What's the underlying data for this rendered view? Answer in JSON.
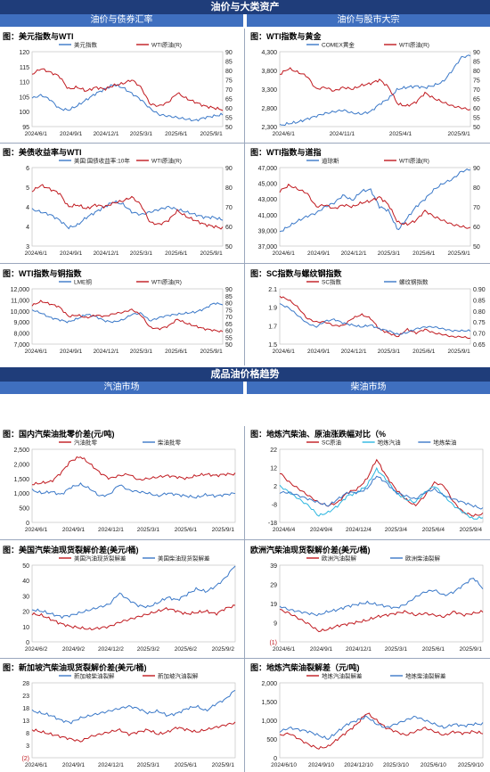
{
  "sections": {
    "top": "油价与大类资产",
    "top_left": "油价与债券汇率",
    "top_right": "油价与股市大宗",
    "bottom": "成品油价格趋势",
    "bottom_left": "汽油市场",
    "bottom_right": "柴油市场"
  },
  "colors": {
    "blue": "#3a78c8",
    "red": "#c0191f",
    "cyan": "#2bb6e0",
    "header": "#1f3d7a",
    "subheader": "#3f6fbf"
  },
  "chart_data": [
    {
      "id": "c1",
      "type": "line",
      "title": "图：美元指数与WTI",
      "x_labels": [
        "2024/6/1",
        "2024/9/1",
        "2024/12/1",
        "2025/3/1",
        "2025/6/1",
        "2025/9/1"
      ],
      "y_left": {
        "ticks": [
          "120",
          "115",
          "110",
          "105",
          "100",
          "95"
        ],
        "range": [
          95,
          120
        ]
      },
      "y_right": {
        "ticks": [
          "90",
          "85",
          "80",
          "75",
          "70",
          "65",
          "60",
          "55",
          "50"
        ],
        "range": [
          50,
          90
        ]
      },
      "series": [
        {
          "name": "美元指数",
          "color": "blue",
          "axis": "left",
          "values": [
            104.5,
            105.5,
            104,
            101,
            100.5,
            102,
            104,
            106,
            107.5,
            109,
            108,
            106,
            104,
            101,
            99,
            98.5,
            98,
            97.5,
            97,
            98,
            98.5,
            99
          ]
        },
        {
          "name": "WTI原油(R)",
          "color": "red",
          "axis": "right",
          "values": [
            78,
            81,
            79,
            77,
            70,
            71,
            69,
            71,
            70,
            72,
            73,
            75,
            71,
            62,
            61,
            63,
            68,
            65,
            63,
            61,
            60,
            59
          ]
        }
      ]
    },
    {
      "id": "c2",
      "type": "line",
      "title": "图：WTI指数与黄金",
      "x_labels": [
        "2024/6/1",
        "2024/11/1",
        "2025/4/1",
        "2025/9/1"
      ],
      "y_left": {
        "ticks": [
          "4,300",
          "3,800",
          "3,300",
          "2,800",
          "2,300"
        ],
        "range": [
          2300,
          4300
        ]
      },
      "y_right": {
        "ticks": [
          "90",
          "85",
          "80",
          "75",
          "70",
          "65",
          "60",
          "55",
          "50"
        ],
        "range": [
          50,
          90
        ]
      },
      "series": [
        {
          "name": "COMEX黄金",
          "color": "blue",
          "axis": "left",
          "values": [
            2330,
            2380,
            2420,
            2500,
            2580,
            2650,
            2700,
            2740,
            2660,
            2640,
            2700,
            2900,
            3050,
            3300,
            3350,
            3380,
            3340,
            3400,
            3500,
            3800,
            4150,
            4200
          ]
        },
        {
          "name": "WTI原油(R)",
          "color": "red",
          "axis": "right",
          "values": [
            78,
            81,
            79,
            77,
            70,
            71,
            69,
            71,
            70,
            72,
            73,
            75,
            71,
            62,
            61,
            63,
            68,
            65,
            63,
            61,
            60,
            59
          ]
        }
      ]
    },
    {
      "id": "c3",
      "type": "line",
      "title": "图：美债收益率与WTI",
      "x_labels": [
        "2024/6/1",
        "2024/9/1",
        "2024/12/1",
        "2025/3/1",
        "2025/6/1",
        "2025/9/1"
      ],
      "y_left": {
        "ticks": [
          "6",
          "5",
          "4",
          "4",
          "3"
        ],
        "range": [
          3,
          6
        ]
      },
      "y_right": {
        "ticks": [
          "90",
          "80",
          "70",
          "60",
          "50"
        ],
        "range": [
          50,
          90
        ]
      },
      "series": [
        {
          "name": "美国:国债收益率:10年",
          "color": "blue",
          "axis": "left",
          "values": [
            4.4,
            4.3,
            4.2,
            4.0,
            3.7,
            3.8,
            4.1,
            4.3,
            4.5,
            4.7,
            4.6,
            4.3,
            4.2,
            4.3,
            4.4,
            4.5,
            4.4,
            4.3,
            4.2,
            4.1,
            4.1,
            4.0
          ]
        },
        {
          "name": "WTI原油(R)",
          "color": "red",
          "axis": "right",
          "values": [
            78,
            81,
            79,
            77,
            70,
            71,
            69,
            71,
            70,
            72,
            73,
            75,
            71,
            62,
            61,
            63,
            68,
            65,
            63,
            61,
            60,
            59
          ]
        }
      ]
    },
    {
      "id": "c4",
      "type": "line",
      "title": "图：WTI指数与道指",
      "x_labels": [
        "2024/6/1",
        "2024/9/1",
        "2024/12/1",
        "2025/3/1",
        "2025/6/1",
        "2025/9/1"
      ],
      "y_left": {
        "ticks": [
          "47,000",
          "45,000",
          "43,000",
          "41,000",
          "39,000",
          "37,000"
        ],
        "range": [
          37000,
          47000
        ]
      },
      "y_right": {
        "ticks": [
          "90",
          "80",
          "70",
          "60",
          "50"
        ],
        "range": [
          50,
          90
        ]
      },
      "series": [
        {
          "name": "道琼斯",
          "color": "blue",
          "axis": "left",
          "values": [
            38800,
            39500,
            40200,
            40800,
            41200,
            42000,
            42500,
            43500,
            42800,
            44000,
            44200,
            42000,
            41500,
            39000,
            40500,
            42000,
            43000,
            44200,
            45000,
            45500,
            46500,
            46800
          ]
        },
        {
          "name": "WTI原油(R)",
          "color": "red",
          "axis": "right",
          "values": [
            78,
            81,
            79,
            77,
            70,
            71,
            69,
            71,
            70,
            72,
            73,
            75,
            71,
            62,
            61,
            63,
            68,
            65,
            63,
            61,
            60,
            59
          ]
        }
      ]
    },
    {
      "id": "c5",
      "type": "line",
      "title": "图：WTI指数与铜指数",
      "x_labels": [
        "2024/6/1",
        "2024/9/1",
        "2024/12/1",
        "2025/3/1",
        "2025/6/1",
        "2025/9/1"
      ],
      "y_left": {
        "ticks": [
          "12,000",
          "11,000",
          "10,000",
          "9,000",
          "8,000",
          "7,000"
        ],
        "range": [
          7000,
          12000
        ]
      },
      "y_right": {
        "ticks": [
          "90",
          "85",
          "80",
          "75",
          "70",
          "65",
          "60",
          "55",
          "50"
        ],
        "range": [
          50,
          90
        ]
      },
      "series": [
        {
          "name": "LME铜",
          "color": "blue",
          "axis": "left",
          "values": [
            10100,
            9800,
            9400,
            9200,
            9000,
            9300,
            9700,
            9500,
            9100,
            9000,
            9200,
            9700,
            9800,
            9100,
            9400,
            9600,
            9700,
            9800,
            9900,
            10200,
            10700,
            10600
          ]
        },
        {
          "name": "WTI原油(R)",
          "color": "red",
          "axis": "right",
          "values": [
            78,
            81,
            79,
            77,
            70,
            71,
            69,
            71,
            70,
            72,
            73,
            75,
            71,
            62,
            61,
            63,
            68,
            65,
            63,
            61,
            60,
            59
          ]
        }
      ]
    },
    {
      "id": "c6",
      "type": "line",
      "title": "图：SC指数与螺纹钢指数",
      "x_labels": [
        "2024/6/1",
        "2024/9/1",
        "2024/12/1",
        "2025/3/1",
        "2025/6/1",
        "2025/9/1"
      ],
      "y_left": {
        "ticks": [
          "2.1",
          "1.9",
          "1.7",
          "1.5"
        ],
        "range": [
          1.45,
          2.2
        ]
      },
      "y_right": {
        "ticks": [
          "0.90",
          "0.85",
          "0.80",
          "0.75",
          "0.70",
          "0.65"
        ],
        "range": [
          0.63,
          0.92
        ]
      },
      "series": [
        {
          "name": "SC指数",
          "color": "red",
          "axis": "left",
          "values": [
            2.1,
            2.05,
            1.95,
            1.8,
            1.75,
            1.75,
            1.7,
            1.7,
            1.8,
            1.85,
            1.8,
            1.65,
            1.6,
            1.55,
            1.65,
            1.6,
            1.65,
            1.6,
            1.58,
            1.55,
            1.55,
            1.53
          ]
        },
        {
          "name": "螺纹钢指数",
          "color": "blue",
          "axis": "right",
          "values": [
            0.84,
            0.82,
            0.78,
            0.74,
            0.72,
            0.75,
            0.76,
            0.74,
            0.73,
            0.72,
            0.73,
            0.71,
            0.7,
            0.68,
            0.69,
            0.71,
            0.72,
            0.72,
            0.71,
            0.7,
            0.7,
            0.7
          ]
        }
      ]
    },
    {
      "id": "c7",
      "type": "line",
      "title": "图：国内汽柴油批零价差(元/吨)",
      "x_labels": [
        "2024/6/1",
        "2024/9/1",
        "2024/12/1",
        "2025/3/1",
        "2025/6/1",
        "2025/9/1"
      ],
      "y_left": {
        "ticks": [
          "2,500",
          "2,000",
          "1,500",
          "1,000",
          "500",
          "0"
        ],
        "range": [
          0,
          2500
        ]
      },
      "series": [
        {
          "name": "汽油批零",
          "color": "red",
          "axis": "left",
          "values": [
            1300,
            1350,
            1400,
            1700,
            2100,
            2250,
            2000,
            1700,
            1500,
            1600,
            1650,
            1450,
            1500,
            1550,
            1600,
            1550,
            1500,
            1600,
            1650,
            1600,
            1650,
            1650
          ]
        },
        {
          "name": "柴油批零",
          "color": "blue",
          "axis": "left",
          "values": [
            1100,
            1000,
            1050,
            950,
            1200,
            1300,
            1150,
            900,
            950,
            1300,
            1100,
            1050,
            1000,
            900,
            1000,
            950,
            900,
            850,
            950,
            900,
            950,
            1000
          ]
        }
      ]
    },
    {
      "id": "c8",
      "type": "line",
      "title": "图：地炼汽柴油、原油涨跌幅对比（%",
      "x_labels": [
        "2024/6/4",
        "2024/9/4",
        "2024/12/4",
        "2025/3/4",
        "2025/6/4",
        "2025/9/4"
      ],
      "y_left": {
        "ticks": [
          "22",
          "12",
          "2",
          "-8",
          "-18"
        ],
        "range": [
          -20,
          24
        ]
      },
      "series": [
        {
          "name": "SC原油",
          "color": "red",
          "axis": "left",
          "values": [
            10,
            4,
            0,
            -4,
            -8,
            -10,
            -8,
            -2,
            0,
            6,
            18,
            8,
            0,
            -6,
            -10,
            -4,
            4,
            2,
            -8,
            -14,
            -16,
            -15
          ]
        },
        {
          "name": "地炼汽油",
          "color": "cyan",
          "axis": "left",
          "values": [
            2,
            -2,
            -6,
            -10,
            -16,
            -14,
            -10,
            -4,
            -2,
            2,
            12,
            6,
            -2,
            -6,
            -8,
            -2,
            2,
            -4,
            -10,
            -14,
            -18,
            -17
          ]
        },
        {
          "name": "地炼柴油",
          "color": "blue",
          "axis": "left",
          "values": [
            -2,
            -2,
            -4,
            -6,
            -8,
            -10,
            -6,
            -2,
            -2,
            0,
            8,
            4,
            -2,
            -4,
            -6,
            -2,
            0,
            -4,
            -6,
            -8,
            -10,
            -12
          ]
        }
      ]
    },
    {
      "id": "c9",
      "type": "line",
      "title": "图：美国汽柴油现货裂解价差(美元/桶)",
      "x_labels": [
        "2024/6/2",
        "2024/9/2",
        "2024/12/2",
        "2025/3/2",
        "2025/6/2",
        "2025/9/2"
      ],
      "y_left": {
        "ticks": [
          "50",
          "40",
          "30",
          "20",
          "10",
          "0"
        ],
        "range": [
          0,
          55
        ]
      },
      "series": [
        {
          "name": "美国汽油现货裂解差",
          "color": "red",
          "axis": "left",
          "values": [
            20,
            19,
            16,
            13,
            11,
            10,
            9,
            10,
            11,
            14,
            16,
            18,
            20,
            22,
            24,
            22,
            20,
            21,
            22,
            20,
            24,
            26
          ]
        },
        {
          "name": "美国柴油现货裂解差",
          "color": "blue",
          "axis": "left",
          "values": [
            23,
            22,
            20,
            18,
            19,
            21,
            23,
            25,
            27,
            35,
            30,
            26,
            25,
            28,
            32,
            30,
            34,
            38,
            36,
            40,
            46,
            55
          ]
        }
      ]
    },
    {
      "id": "c10",
      "type": "line",
      "title": "欧洲汽柴油现货裂解价差(美元/桶)",
      "x_labels": [
        "2024/6/1",
        "2024/9/1",
        "2024/12/1",
        "2025/3/1",
        "2025/6/1",
        "2025/9/1"
      ],
      "y_left": {
        "ticks": [
          "39",
          "29",
          "19",
          "9",
          "(1)"
        ],
        "range": [
          -1,
          42
        ]
      },
      "series": [
        {
          "name": "欧洲汽油裂解",
          "color": "red",
          "axis": "left",
          "values": [
            17,
            15,
            12,
            9,
            5,
            6,
            8,
            9,
            10,
            11,
            13,
            14,
            15,
            16,
            14,
            15,
            14,
            13,
            16,
            14,
            15,
            16
          ]
        },
        {
          "name": "欧洲柴油裂解",
          "color": "blue",
          "axis": "left",
          "values": [
            19,
            17,
            16,
            15,
            14,
            16,
            17,
            19,
            20,
            21,
            20,
            19,
            18,
            20,
            24,
            27,
            28,
            25,
            27,
            31,
            35,
            29
          ]
        }
      ]
    },
    {
      "id": "c11",
      "type": "line",
      "title": "图：新加坡汽柴油现货裂解价差(美元/桶)",
      "x_labels": [
        "2024/6/1",
        "2024/9/1",
        "2024/12/1",
        "2025/3/1",
        "2025/6/1",
        "2025/9/1"
      ],
      "y_left": {
        "ticks": [
          "28",
          "23",
          "18",
          "13",
          "8",
          "3",
          "(2)"
        ],
        "range": [
          -2,
          30
        ]
      },
      "series": [
        {
          "name": "新加坡柴油裂解",
          "color": "blue",
          "axis": "left",
          "values": [
            18,
            17,
            16,
            14,
            13,
            15,
            16,
            17,
            18,
            19,
            20,
            19,
            17,
            18,
            16,
            17,
            19,
            20,
            18,
            21,
            23,
            27
          ]
        },
        {
          "name": "新加坡汽油裂解",
          "color": "red",
          "axis": "left",
          "values": [
            10,
            9,
            8,
            7,
            6,
            5,
            7,
            8,
            9,
            10,
            8,
            9,
            10,
            8,
            9,
            11,
            10,
            9,
            10,
            11,
            12,
            13
          ]
        }
      ]
    },
    {
      "id": "c12",
      "type": "line",
      "title": "图：地炼汽柴油裂解差（元/吨)",
      "x_labels": [
        "2024/6/10",
        "2024/9/10",
        "2024/12/10",
        "2025/3/10",
        "2025/6/10",
        "2025/9/10"
      ],
      "y_left": {
        "ticks": [
          "2,000",
          "1,500",
          "1,000",
          "500",
          "0"
        ],
        "range": [
          0,
          2000
        ]
      },
      "series": [
        {
          "name": "地炼汽油裂解差",
          "color": "red",
          "axis": "left",
          "values": [
            600,
            650,
            500,
            350,
            250,
            300,
            500,
            700,
            900,
            1200,
            1000,
            800,
            700,
            600,
            700,
            800,
            700,
            600,
            700,
            650,
            700,
            650
          ]
        },
        {
          "name": "地炼柴油裂解差",
          "color": "blue",
          "axis": "left",
          "values": [
            700,
            800,
            750,
            700,
            600,
            500,
            700,
            900,
            1000,
            1100,
            900,
            800,
            900,
            1000,
            1100,
            1000,
            900,
            800,
            900,
            850,
            900,
            900
          ]
        }
      ]
    }
  ]
}
